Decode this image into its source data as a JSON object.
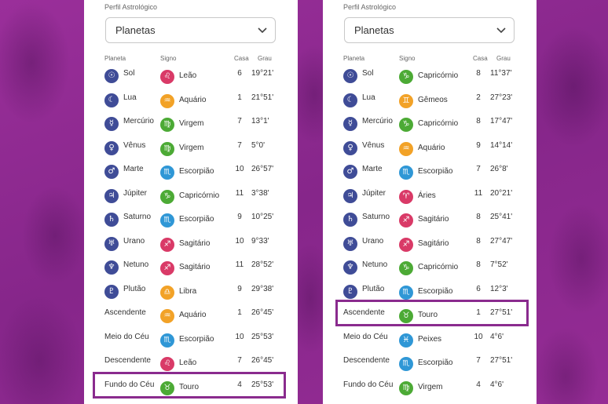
{
  "colors": {
    "background": "#8e2a8e",
    "planet_icon": "#3f4c97",
    "highlight": "#8a2b8e"
  },
  "panels": [
    {
      "profile_label": "Perfil Astrológico",
      "dropdown_value": "Planetas",
      "headers": {
        "planeta": "Planeta",
        "signo": "Signo",
        "casa": "Casa",
        "grau": "Grau"
      },
      "highlight_row_index": 13,
      "rows": [
        {
          "planet": "Sol",
          "planet_symbol": "☉",
          "sign": "Leão",
          "sign_symbol": "♌",
          "sign_color": "#d93a67",
          "casa": "6",
          "grau": "19°21'"
        },
        {
          "planet": "Lua",
          "planet_symbol": "☾",
          "sign": "Aquário",
          "sign_symbol": "♒",
          "sign_color": "#f2a227",
          "casa": "1",
          "grau": "21°51'"
        },
        {
          "planet": "Mercúrio",
          "planet_symbol": "☿",
          "sign": "Virgem",
          "sign_symbol": "♍",
          "sign_color": "#4caa35",
          "casa": "7",
          "grau": "13°1'"
        },
        {
          "planet": "Vênus",
          "planet_symbol": "♀",
          "sign": "Virgem",
          "sign_symbol": "♍",
          "sign_color": "#4caa35",
          "casa": "7",
          "grau": "5°0'"
        },
        {
          "planet": "Marte",
          "planet_symbol": "♂",
          "sign": "Escorpião",
          "sign_symbol": "♏",
          "sign_color": "#2f97d6",
          "casa": "10",
          "grau": "26°57'"
        },
        {
          "planet": "Júpiter",
          "planet_symbol": "♃",
          "sign": "Capricórnio",
          "sign_symbol": "♑",
          "sign_color": "#4caa35",
          "casa": "11",
          "grau": "3°38'"
        },
        {
          "planet": "Saturno",
          "planet_symbol": "♄",
          "sign": "Escorpião",
          "sign_symbol": "♏",
          "sign_color": "#2f97d6",
          "casa": "9",
          "grau": "10°25'"
        },
        {
          "planet": "Urano",
          "planet_symbol": "♅",
          "sign": "Sagitário",
          "sign_symbol": "♐",
          "sign_color": "#d93a67",
          "casa": "10",
          "grau": "9°33'"
        },
        {
          "planet": "Netuno",
          "planet_symbol": "♆",
          "sign": "Sagitário",
          "sign_symbol": "♐",
          "sign_color": "#d93a67",
          "casa": "11",
          "grau": "28°52'"
        },
        {
          "planet": "Plutão",
          "planet_symbol": "♇",
          "sign": "Libra",
          "sign_symbol": "♎",
          "sign_color": "#f2a227",
          "casa": "9",
          "grau": "29°38'"
        },
        {
          "planet": "Ascendente",
          "planet_symbol": "",
          "sign": "Aquário",
          "sign_symbol": "♒",
          "sign_color": "#f2a227",
          "casa": "1",
          "grau": "26°45'"
        },
        {
          "planet": "Meio do Céu",
          "planet_symbol": "",
          "sign": "Escorpião",
          "sign_symbol": "♏",
          "sign_color": "#2f97d6",
          "casa": "10",
          "grau": "25°53'"
        },
        {
          "planet": "Descendente",
          "planet_symbol": "",
          "sign": "Leão",
          "sign_symbol": "♌",
          "sign_color": "#d93a67",
          "casa": "7",
          "grau": "26°45'"
        },
        {
          "planet": "Fundo do Céu",
          "planet_symbol": "",
          "sign": "Touro",
          "sign_symbol": "♉",
          "sign_color": "#4caa35",
          "casa": "4",
          "grau": "25°53'"
        }
      ]
    },
    {
      "profile_label": "Perfil Astrológico",
      "dropdown_value": "Planetas",
      "headers": {
        "planeta": "Planeta",
        "signo": "Signo",
        "casa": "Casa",
        "grau": "Grau"
      },
      "highlight_row_index": 10,
      "rows": [
        {
          "planet": "Sol",
          "planet_symbol": "☉",
          "sign": "Capricórnio",
          "sign_symbol": "♑",
          "sign_color": "#4caa35",
          "casa": "8",
          "grau": "11°37'"
        },
        {
          "planet": "Lua",
          "planet_symbol": "☾",
          "sign": "Gêmeos",
          "sign_symbol": "♊",
          "sign_color": "#f2a227",
          "casa": "2",
          "grau": "27°23'"
        },
        {
          "planet": "Mercúrio",
          "planet_symbol": "☿",
          "sign": "Capricórnio",
          "sign_symbol": "♑",
          "sign_color": "#4caa35",
          "casa": "8",
          "grau": "17°47'"
        },
        {
          "planet": "Vênus",
          "planet_symbol": "♀",
          "sign": "Aquário",
          "sign_symbol": "♒",
          "sign_color": "#f2a227",
          "casa": "9",
          "grau": "14°14'"
        },
        {
          "planet": "Marte",
          "planet_symbol": "♂",
          "sign": "Escorpião",
          "sign_symbol": "♏",
          "sign_color": "#2f97d6",
          "casa": "7",
          "grau": "26°8'"
        },
        {
          "planet": "Júpiter",
          "planet_symbol": "♃",
          "sign": "Áries",
          "sign_symbol": "♈",
          "sign_color": "#d93a67",
          "casa": "11",
          "grau": "20°21'"
        },
        {
          "planet": "Saturno",
          "planet_symbol": "♄",
          "sign": "Sagitário",
          "sign_symbol": "♐",
          "sign_color": "#d93a67",
          "casa": "8",
          "grau": "25°41'"
        },
        {
          "planet": "Urano",
          "planet_symbol": "♅",
          "sign": "Sagitário",
          "sign_symbol": "♐",
          "sign_color": "#d93a67",
          "casa": "8",
          "grau": "27°47'"
        },
        {
          "planet": "Netuno",
          "planet_symbol": "♆",
          "sign": "Capricórnio",
          "sign_symbol": "♑",
          "sign_color": "#4caa35",
          "casa": "8",
          "grau": "7°52'"
        },
        {
          "planet": "Plutão",
          "planet_symbol": "♇",
          "sign": "Escorpião",
          "sign_symbol": "♏",
          "sign_color": "#2f97d6",
          "casa": "6",
          "grau": "12°3'"
        },
        {
          "planet": "Ascendente",
          "planet_symbol": "",
          "sign": "Touro",
          "sign_symbol": "♉",
          "sign_color": "#4caa35",
          "casa": "1",
          "grau": "27°51'"
        },
        {
          "planet": "Meio do Céu",
          "planet_symbol": "",
          "sign": "Peixes",
          "sign_symbol": "♓",
          "sign_color": "#2f97d6",
          "casa": "10",
          "grau": "4°6'"
        },
        {
          "planet": "Descendente",
          "planet_symbol": "",
          "sign": "Escorpião",
          "sign_symbol": "♏",
          "sign_color": "#2f97d6",
          "casa": "7",
          "grau": "27°51'"
        },
        {
          "planet": "Fundo do Céu",
          "planet_symbol": "",
          "sign": "Virgem",
          "sign_symbol": "♍",
          "sign_color": "#4caa35",
          "casa": "4",
          "grau": "4°6'"
        }
      ]
    }
  ]
}
